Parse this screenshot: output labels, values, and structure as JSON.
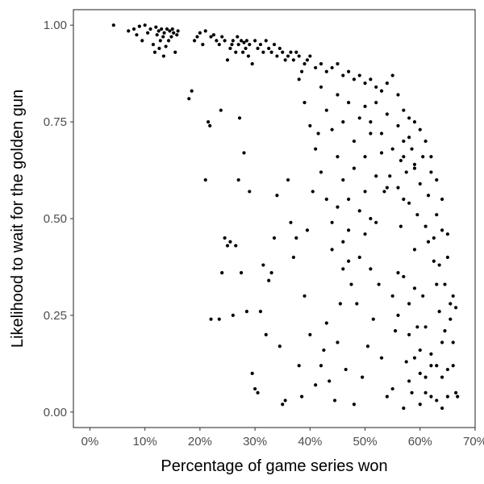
{
  "colors": {
    "background": "#ffffff",
    "panel_border": "#333333",
    "point": "#000000",
    "tick_text": "#4d4d4d"
  },
  "chart_data": {
    "type": "scatter",
    "title": "",
    "xlabel": "Percentage of game series won",
    "ylabel": "Likelihood to wait for the golden gun",
    "xlim": [
      -0.03,
      0.7
    ],
    "ylim": [
      -0.04,
      1.04
    ],
    "grid": false,
    "legend": "none",
    "x_ticks": [
      0,
      0.1,
      0.2,
      0.3,
      0.4,
      0.5,
      0.6,
      0.7
    ],
    "x_tick_labels": [
      "0%",
      "10%",
      "20%",
      "30%",
      "40%",
      "50%",
      "60%",
      "70%"
    ],
    "y_ticks": [
      0,
      0.25,
      0.5,
      0.75,
      1.0
    ],
    "y_tick_labels": [
      "0.00",
      "0.25",
      "0.50",
      "0.75",
      "1.00"
    ],
    "points": [
      [
        0.043,
        1.0
      ],
      [
        0.07,
        0.985
      ],
      [
        0.08,
        0.99
      ],
      [
        0.085,
        0.975
      ],
      [
        0.09,
        0.997
      ],
      [
        0.095,
        0.96
      ],
      [
        0.1,
        1.0
      ],
      [
        0.105,
        0.98
      ],
      [
        0.11,
        0.99
      ],
      [
        0.115,
        0.95
      ],
      [
        0.12,
        0.995
      ],
      [
        0.122,
        0.975
      ],
      [
        0.125,
        0.985
      ],
      [
        0.128,
        0.96
      ],
      [
        0.13,
        0.99
      ],
      [
        0.133,
        0.97
      ],
      [
        0.135,
        0.98
      ],
      [
        0.138,
        0.945
      ],
      [
        0.14,
        0.99
      ],
      [
        0.143,
        0.96
      ],
      [
        0.145,
        0.985
      ],
      [
        0.148,
        0.97
      ],
      [
        0.15,
        0.99
      ],
      [
        0.152,
        0.98
      ],
      [
        0.155,
        0.93
      ],
      [
        0.158,
        0.975
      ],
      [
        0.16,
        0.985
      ],
      [
        0.118,
        0.93
      ],
      [
        0.126,
        0.94
      ],
      [
        0.134,
        0.92
      ],
      [
        0.18,
        0.81
      ],
      [
        0.185,
        0.83
      ],
      [
        0.19,
        0.96
      ],
      [
        0.195,
        0.97
      ],
      [
        0.2,
        0.98
      ],
      [
        0.205,
        0.95
      ],
      [
        0.21,
        0.985
      ],
      [
        0.215,
        0.75
      ],
      [
        0.218,
        0.74
      ],
      [
        0.22,
        0.97
      ],
      [
        0.225,
        0.975
      ],
      [
        0.23,
        0.96
      ],
      [
        0.235,
        0.95
      ],
      [
        0.238,
        0.78
      ],
      [
        0.24,
        0.97
      ],
      [
        0.245,
        0.96
      ],
      [
        0.25,
        0.91
      ],
      [
        0.255,
        0.94
      ],
      [
        0.258,
        0.95
      ],
      [
        0.26,
        0.96
      ],
      [
        0.265,
        0.93
      ],
      [
        0.268,
        0.97
      ],
      [
        0.27,
        0.95
      ],
      [
        0.272,
        0.76
      ],
      [
        0.275,
        0.96
      ],
      [
        0.278,
        0.93
      ],
      [
        0.28,
        0.955
      ],
      [
        0.283,
        0.94
      ],
      [
        0.285,
        0.96
      ],
      [
        0.288,
        0.92
      ],
      [
        0.29,
        0.95
      ],
      [
        0.295,
        0.9
      ],
      [
        0.3,
        0.96
      ],
      [
        0.305,
        0.94
      ],
      [
        0.31,
        0.95
      ],
      [
        0.315,
        0.93
      ],
      [
        0.32,
        0.96
      ],
      [
        0.325,
        0.94
      ],
      [
        0.33,
        0.93
      ],
      [
        0.335,
        0.95
      ],
      [
        0.34,
        0.92
      ],
      [
        0.345,
        0.94
      ],
      [
        0.35,
        0.93
      ],
      [
        0.355,
        0.91
      ],
      [
        0.36,
        0.92
      ],
      [
        0.365,
        0.93
      ],
      [
        0.37,
        0.91
      ],
      [
        0.375,
        0.93
      ],
      [
        0.38,
        0.92
      ],
      [
        0.385,
        0.88
      ],
      [
        0.39,
        0.9
      ],
      [
        0.395,
        0.91
      ],
      [
        0.4,
        0.92
      ],
      [
        0.41,
        0.89
      ],
      [
        0.42,
        0.9
      ],
      [
        0.43,
        0.88
      ],
      [
        0.44,
        0.89
      ],
      [
        0.45,
        0.9
      ],
      [
        0.46,
        0.87
      ],
      [
        0.47,
        0.88
      ],
      [
        0.48,
        0.86
      ],
      [
        0.49,
        0.87
      ],
      [
        0.5,
        0.85
      ],
      [
        0.51,
        0.86
      ],
      [
        0.52,
        0.84
      ],
      [
        0.53,
        0.83
      ],
      [
        0.54,
        0.85
      ],
      [
        0.55,
        0.87
      ],
      [
        0.56,
        0.82
      ],
      [
        0.57,
        0.78
      ],
      [
        0.58,
        0.76
      ],
      [
        0.59,
        0.75
      ],
      [
        0.6,
        0.73
      ],
      [
        0.61,
        0.7
      ],
      [
        0.62,
        0.66
      ],
      [
        0.63,
        0.6
      ],
      [
        0.64,
        0.55
      ],
      [
        0.65,
        0.46
      ],
      [
        0.66,
        0.3
      ],
      [
        0.665,
        0.27
      ],
      [
        0.21,
        0.6
      ],
      [
        0.22,
        0.24
      ],
      [
        0.235,
        0.24
      ],
      [
        0.24,
        0.36
      ],
      [
        0.245,
        0.45
      ],
      [
        0.25,
        0.43
      ],
      [
        0.255,
        0.44
      ],
      [
        0.26,
        0.25
      ],
      [
        0.265,
        0.43
      ],
      [
        0.27,
        0.6
      ],
      [
        0.275,
        0.36
      ],
      [
        0.28,
        0.67
      ],
      [
        0.285,
        0.26
      ],
      [
        0.29,
        0.57
      ],
      [
        0.295,
        0.1
      ],
      [
        0.3,
        0.06
      ],
      [
        0.305,
        0.05
      ],
      [
        0.31,
        0.26
      ],
      [
        0.315,
        0.38
      ],
      [
        0.32,
        0.2
      ],
      [
        0.325,
        0.34
      ],
      [
        0.33,
        0.36
      ],
      [
        0.335,
        0.45
      ],
      [
        0.34,
        0.56
      ],
      [
        0.345,
        0.17
      ],
      [
        0.35,
        0.02
      ],
      [
        0.355,
        0.03
      ],
      [
        0.36,
        0.6
      ],
      [
        0.365,
        0.49
      ],
      [
        0.37,
        0.4
      ],
      [
        0.375,
        0.45
      ],
      [
        0.38,
        0.12
      ],
      [
        0.385,
        0.04
      ],
      [
        0.39,
        0.3
      ],
      [
        0.395,
        0.47
      ],
      [
        0.4,
        0.2
      ],
      [
        0.405,
        0.57
      ],
      [
        0.41,
        0.07
      ],
      [
        0.415,
        0.72
      ],
      [
        0.42,
        0.12
      ],
      [
        0.425,
        0.16
      ],
      [
        0.43,
        0.23
      ],
      [
        0.435,
        0.08
      ],
      [
        0.44,
        0.42
      ],
      [
        0.445,
        0.03
      ],
      [
        0.45,
        0.18
      ],
      [
        0.455,
        0.28
      ],
      [
        0.46,
        0.37
      ],
      [
        0.465,
        0.11
      ],
      [
        0.47,
        0.47
      ],
      [
        0.475,
        0.33
      ],
      [
        0.48,
        0.02
      ],
      [
        0.485,
        0.28
      ],
      [
        0.49,
        0.4
      ],
      [
        0.495,
        0.09
      ],
      [
        0.5,
        0.46
      ],
      [
        0.505,
        0.17
      ],
      [
        0.51,
        0.37
      ],
      [
        0.515,
        0.24
      ],
      [
        0.52,
        0.49
      ],
      [
        0.525,
        0.33
      ],
      [
        0.53,
        0.14
      ],
      [
        0.535,
        0.57
      ],
      [
        0.54,
        0.04
      ],
      [
        0.545,
        0.61
      ],
      [
        0.55,
        0.06
      ],
      [
        0.555,
        0.21
      ],
      [
        0.56,
        0.36
      ],
      [
        0.565,
        0.48
      ],
      [
        0.57,
        0.55
      ],
      [
        0.575,
        0.13
      ],
      [
        0.58,
        0.28
      ],
      [
        0.585,
        0.05
      ],
      [
        0.59,
        0.42
      ],
      [
        0.595,
        0.22
      ],
      [
        0.6,
        0.16
      ],
      [
        0.605,
        0.3
      ],
      [
        0.61,
        0.05
      ],
      [
        0.615,
        0.44
      ],
      [
        0.62,
        0.12
      ],
      [
        0.625,
        0.39
      ],
      [
        0.63,
        0.03
      ],
      [
        0.635,
        0.26
      ],
      [
        0.64,
        0.09
      ],
      [
        0.645,
        0.21
      ],
      [
        0.65,
        0.04
      ],
      [
        0.655,
        0.24
      ],
      [
        0.66,
        0.12
      ],
      [
        0.665,
        0.05
      ],
      [
        0.668,
        0.04
      ],
      [
        0.56,
        0.58
      ],
      [
        0.565,
        0.65
      ],
      [
        0.57,
        0.7
      ],
      [
        0.575,
        0.62
      ],
      [
        0.58,
        0.54
      ],
      [
        0.585,
        0.68
      ],
      [
        0.59,
        0.63
      ],
      [
        0.595,
        0.51
      ],
      [
        0.6,
        0.59
      ],
      [
        0.605,
        0.66
      ],
      [
        0.61,
        0.48
      ],
      [
        0.615,
        0.56
      ],
      [
        0.62,
        0.62
      ],
      [
        0.625,
        0.45
      ],
      [
        0.63,
        0.51
      ],
      [
        0.635,
        0.38
      ],
      [
        0.64,
        0.47
      ],
      [
        0.645,
        0.33
      ],
      [
        0.65,
        0.4
      ],
      [
        0.655,
        0.28
      ],
      [
        0.5,
        0.79
      ],
      [
        0.51,
        0.75
      ],
      [
        0.52,
        0.8
      ],
      [
        0.53,
        0.72
      ],
      [
        0.54,
        0.77
      ],
      [
        0.55,
        0.68
      ],
      [
        0.56,
        0.74
      ],
      [
        0.57,
        0.66
      ],
      [
        0.58,
        0.71
      ],
      [
        0.59,
        0.64
      ],
      [
        0.45,
        0.82
      ],
      [
        0.46,
        0.75
      ],
      [
        0.47,
        0.8
      ],
      [
        0.48,
        0.7
      ],
      [
        0.49,
        0.76
      ],
      [
        0.5,
        0.66
      ],
      [
        0.51,
        0.72
      ],
      [
        0.52,
        0.61
      ],
      [
        0.53,
        0.67
      ],
      [
        0.54,
        0.58
      ],
      [
        0.42,
        0.84
      ],
      [
        0.43,
        0.78
      ],
      [
        0.44,
        0.73
      ],
      [
        0.45,
        0.66
      ],
      [
        0.46,
        0.6
      ],
      [
        0.47,
        0.55
      ],
      [
        0.48,
        0.63
      ],
      [
        0.49,
        0.52
      ],
      [
        0.5,
        0.57
      ],
      [
        0.51,
        0.5
      ],
      [
        0.38,
        0.86
      ],
      [
        0.39,
        0.8
      ],
      [
        0.4,
        0.74
      ],
      [
        0.41,
        0.68
      ],
      [
        0.42,
        0.62
      ],
      [
        0.43,
        0.55
      ],
      [
        0.44,
        0.49
      ],
      [
        0.45,
        0.53
      ],
      [
        0.46,
        0.44
      ],
      [
        0.47,
        0.39
      ],
      [
        0.55,
        0.3
      ],
      [
        0.56,
        0.25
      ],
      [
        0.57,
        0.35
      ],
      [
        0.58,
        0.2
      ],
      [
        0.59,
        0.32
      ],
      [
        0.6,
        0.1
      ],
      [
        0.61,
        0.22
      ],
      [
        0.62,
        0.15
      ],
      [
        0.63,
        0.33
      ],
      [
        0.64,
        0.18
      ],
      [
        0.58,
        0.08
      ],
      [
        0.59,
        0.14
      ],
      [
        0.6,
        0.02
      ],
      [
        0.61,
        0.09
      ],
      [
        0.62,
        0.04
      ],
      [
        0.63,
        0.12
      ],
      [
        0.64,
        0.01
      ],
      [
        0.65,
        0.11
      ],
      [
        0.66,
        0.18
      ],
      [
        0.57,
        0.01
      ]
    ]
  }
}
